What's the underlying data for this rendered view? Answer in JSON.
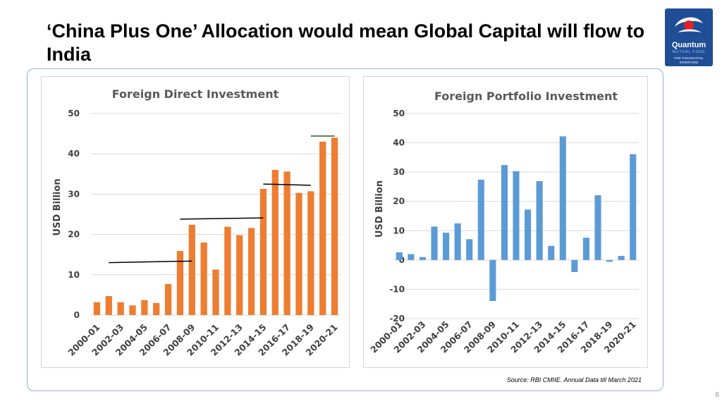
{
  "slide": {
    "title": "‘China Plus One’  Allocation would mean Global Capital will flow to India",
    "source": "Source: RBI CMIIE. Annual Data till March 2021",
    "page_number": "8"
  },
  "logo": {
    "name": "Quantum",
    "sub": "MUTUAL FUND",
    "tagline": "FOR THOUGHTFUL INVESTORS"
  },
  "colors": {
    "fdi_bar": "#ed7d31",
    "fpi_bar": "#5b9bd5",
    "logo_bg": "#1f4e96",
    "frame": "#8fb3dc",
    "trend_line": "#000000",
    "top_marker": "#375623"
  },
  "chart_data": [
    {
      "type": "bar",
      "title": "Foreign Direct Investment",
      "ylabel": "USD Billion",
      "xlabel": "",
      "ylim": [
        0,
        50
      ],
      "yticks": [
        0,
        10,
        20,
        30,
        40,
        50
      ],
      "grid": true,
      "categories": [
        "2000-01",
        "2001-02",
        "2002-03",
        "2003-04",
        "2004-05",
        "2005-06",
        "2006-07",
        "2007-08",
        "2008-09",
        "2009-10",
        "2010-11",
        "2011-12",
        "2012-13",
        "2013-14",
        "2014-15",
        "2015-16",
        "2016-17",
        "2017-18",
        "2018-19",
        "2019-20",
        "2020-21"
      ],
      "tick_labels": [
        "2000-01",
        "2002-03",
        "2004-05",
        "2006-07",
        "2008-09",
        "2010-11",
        "2012-13",
        "2014-15",
        "2016-17",
        "2018-19",
        "2020-21"
      ],
      "values": [
        3.2,
        4.7,
        3.2,
        2.4,
        3.7,
        3.0,
        7.7,
        15.9,
        22.4,
        18.0,
        11.3,
        21.9,
        19.8,
        21.6,
        31.3,
        36.0,
        35.6,
        30.3,
        30.7,
        43.0,
        44.0
      ],
      "trend_lines": [
        {
          "from": "2001-02",
          "to": "2008-09",
          "y_start": 13.0,
          "y_end": 13.4
        },
        {
          "from": "2007-08",
          "to": "2014-15",
          "y_start": 23.8,
          "y_end": 24.1
        },
        {
          "from": "2014-15",
          "to": "2018-19",
          "y_start": 32.5,
          "y_end": 32.2
        },
        {
          "from": "2018-19",
          "to": "2020-21",
          "y_start": 44.4,
          "y_end": 44.4
        }
      ]
    },
    {
      "type": "bar",
      "title": "Foreign Portfolio Investment",
      "ylabel": "USD Billion",
      "xlabel": "",
      "ylim": [
        -20,
        50
      ],
      "yticks": [
        -20,
        -10,
        0,
        10,
        20,
        30,
        40,
        50
      ],
      "grid": true,
      "categories": [
        "2000-01",
        "2001-02",
        "2002-03",
        "2003-04",
        "2004-05",
        "2005-06",
        "2006-07",
        "2007-08",
        "2008-09",
        "2009-10",
        "2010-11",
        "2011-12",
        "2012-13",
        "2013-14",
        "2014-15",
        "2015-16",
        "2016-17",
        "2017-18",
        "2018-19",
        "2019-20",
        "2020-21"
      ],
      "tick_labels": [
        "2000-01",
        "2002-03",
        "2004-05",
        "2006-07",
        "2008-09",
        "2010-11",
        "2012-13",
        "2014-15",
        "2016-17",
        "2018-19",
        "2020-21"
      ],
      "values": [
        2.6,
        2.0,
        1.0,
        11.4,
        9.3,
        12.5,
        7.1,
        27.4,
        -14.0,
        32.4,
        30.3,
        17.2,
        26.9,
        4.8,
        42.2,
        -4.1,
        7.6,
        22.1,
        -0.6,
        1.4,
        36.1
      ]
    }
  ]
}
